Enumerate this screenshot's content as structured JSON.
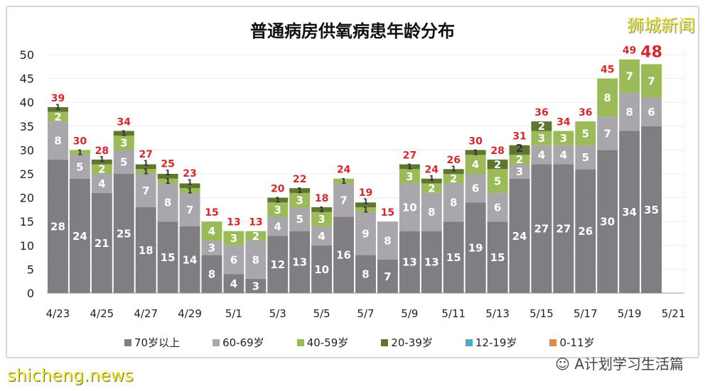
{
  "chart_data": {
    "type": "bar",
    "stacked": true,
    "title": "普通病房供氧病患年龄分布",
    "categories": [
      "4/23",
      "4/24",
      "4/25",
      "4/26",
      "4/27",
      "4/28",
      "4/29",
      "4/30",
      "5/1",
      "5/2",
      "5/3",
      "5/4",
      "5/5",
      "5/6",
      "5/7",
      "5/8",
      "5/9",
      "5/10",
      "5/11",
      "5/12",
      "5/13",
      "5/14",
      "5/15",
      "5/16",
      "5/17",
      "5/18",
      "5/19",
      "5/20"
    ],
    "x_tick_labels": [
      "4/23",
      "4/25",
      "4/27",
      "4/29",
      "5/1",
      "5/3",
      "5/5",
      "5/7",
      "5/9",
      "5/11",
      "5/13",
      "5/15",
      "5/17",
      "5/19",
      "5/21"
    ],
    "series": [
      {
        "name": "70岁以上",
        "color": "#807e82",
        "values": [
          28,
          24,
          21,
          25,
          18,
          15,
          14,
          8,
          4,
          3,
          12,
          13,
          10,
          16,
          8,
          7,
          13,
          13,
          15,
          19,
          15,
          24,
          27,
          27,
          26,
          30,
          34,
          35
        ]
      },
      {
        "name": "60-69岁",
        "color": "#a9a7ab",
        "values": [
          8,
          5,
          4,
          5,
          7,
          8,
          7,
          3,
          6,
          8,
          4,
          5,
          4,
          7,
          9,
          8,
          10,
          8,
          8,
          6,
          6,
          3,
          4,
          4,
          5,
          7,
          8,
          6
        ]
      },
      {
        "name": "40-59岁",
        "color": "#9bbb59",
        "values": [
          2,
          1,
          2,
          3,
          1,
          1,
          1,
          4,
          3,
          2,
          3,
          3,
          3,
          1,
          1,
          0,
          3,
          2,
          2,
          4,
          5,
          2,
          3,
          3,
          5,
          8,
          7,
          7
        ]
      },
      {
        "name": "20-39岁",
        "color": "#5f7530",
        "values": [
          1,
          0,
          1,
          1,
          1,
          1,
          1,
          0,
          0,
          0,
          1,
          1,
          1,
          0,
          1,
          0,
          1,
          1,
          1,
          1,
          2,
          2,
          2,
          0,
          0,
          0,
          0,
          0
        ]
      },
      {
        "name": "12-19岁",
        "color": "#4bacc6",
        "values": [
          0,
          0,
          0,
          0,
          0,
          0,
          0,
          0,
          0,
          0,
          0,
          0,
          0,
          0,
          0,
          0,
          0,
          0,
          0,
          0,
          0,
          0,
          0,
          0,
          0,
          0,
          0,
          0
        ]
      },
      {
        "name": "0-11岁",
        "color": "#e0894d",
        "values": [
          0,
          0,
          0,
          0,
          0,
          0,
          0,
          0,
          0,
          0,
          0,
          0,
          0,
          0,
          0,
          0,
          0,
          0,
          0,
          0,
          0,
          0,
          0,
          0,
          0,
          0,
          0,
          0
        ]
      }
    ],
    "totals": [
      39,
      30,
      28,
      34,
      27,
      25,
      23,
      15,
      13,
      13,
      20,
      22,
      18,
      24,
      19,
      15,
      27,
      24,
      26,
      30,
      28,
      31,
      36,
      34,
      36,
      45,
      49,
      48
    ],
    "total_label_color": "#d9262b",
    "ylim": [
      0,
      50
    ],
    "y_ticks": [
      0,
      5,
      10,
      15,
      20,
      25,
      30,
      35,
      40,
      45,
      50
    ],
    "grid": true,
    "legend_position": "bottom"
  },
  "brand": "狮城新闻",
  "wechat_source": "A计划学习生活篇",
  "watermark": "shicheng.news"
}
